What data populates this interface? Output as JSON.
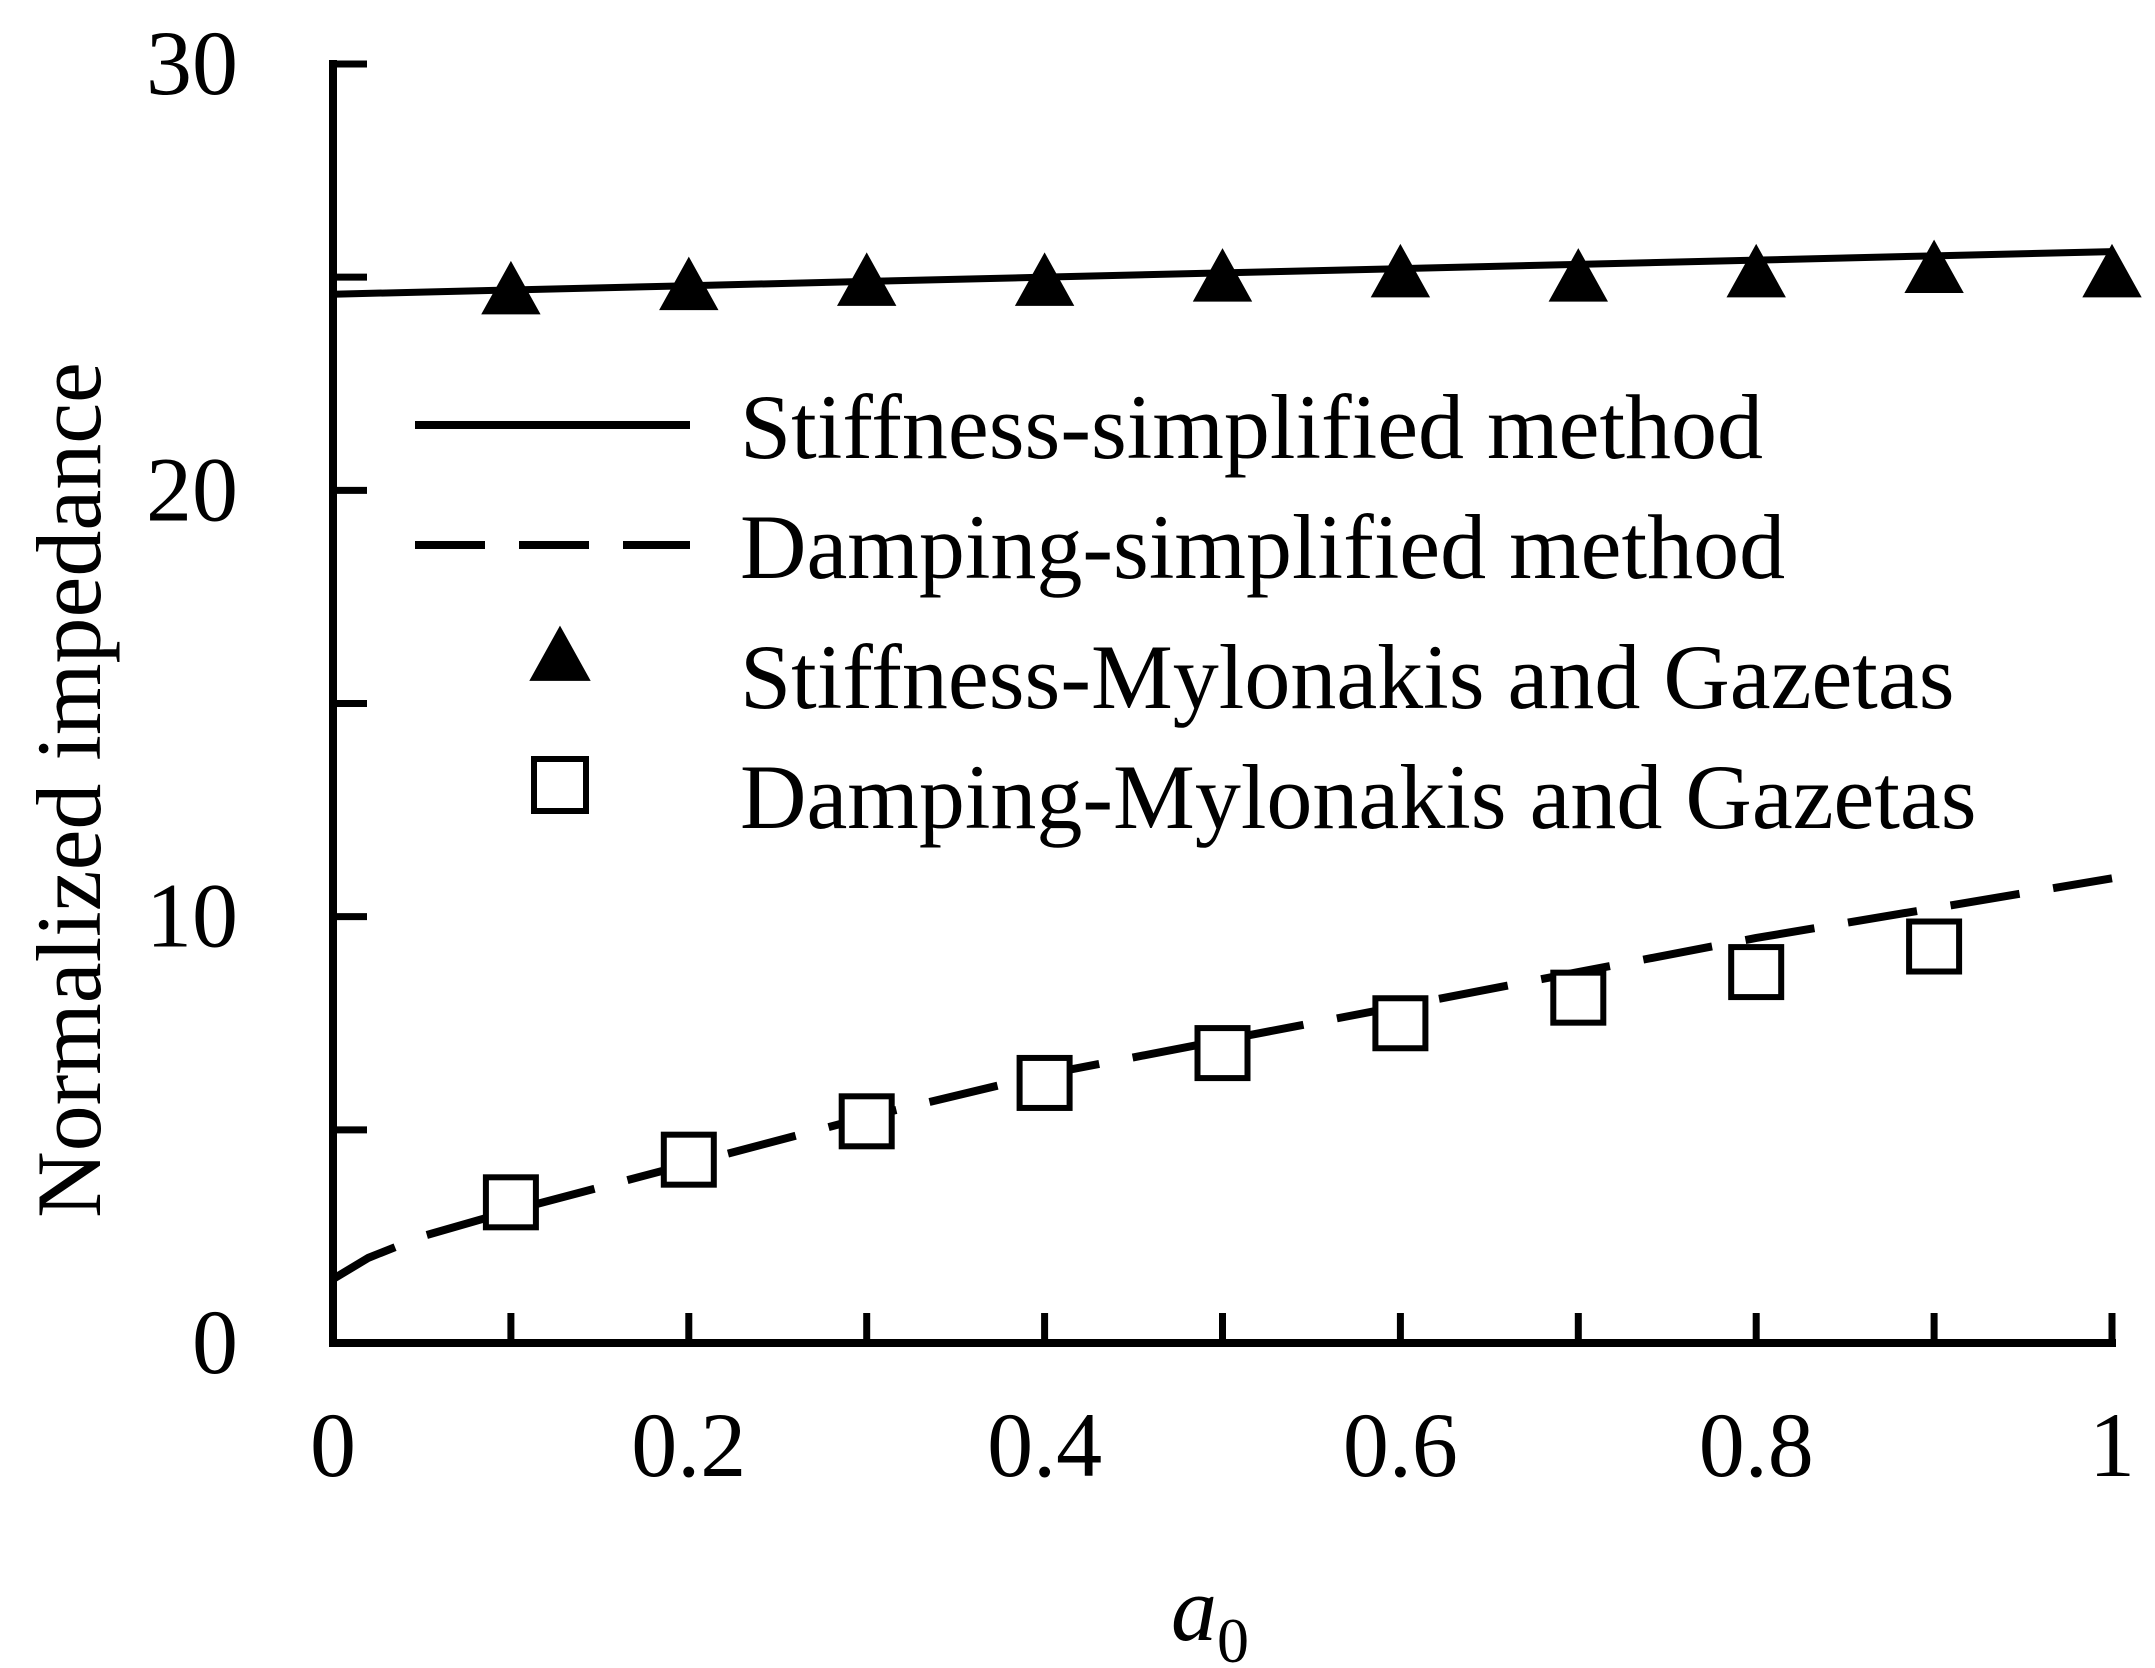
{
  "chart_data": {
    "type": "line",
    "title": "",
    "xlabel": "a",
    "xlabel_subscript": "0",
    "ylabel": "Normalized impedance",
    "xlim": [
      0,
      1
    ],
    "ylim": [
      0,
      30
    ],
    "xticks": [
      0,
      0.1,
      0.2,
      0.3,
      0.4,
      0.5,
      0.6,
      0.7,
      0.8,
      0.9,
      1.0
    ],
    "xtick_labels": [
      "0",
      "0.2",
      "0.4",
      "0.6",
      "0.8",
      "1"
    ],
    "xtick_label_values": [
      0,
      0.2,
      0.4,
      0.6,
      0.8,
      1
    ],
    "yticks": [
      0,
      5,
      10,
      15,
      20,
      25,
      30
    ],
    "ytick_labels": [
      "0",
      "10",
      "20",
      "30"
    ],
    "ytick_label_values": [
      0,
      10,
      20,
      30
    ],
    "legend_position": "middle",
    "series": [
      {
        "name": "Stiffness-simplified method",
        "style": "solid-line",
        "x": [
          0,
          0.1,
          0.2,
          0.3,
          0.4,
          0.5,
          0.6,
          0.7,
          0.8,
          0.9,
          1.0
        ],
        "y": [
          24.6,
          24.7,
          24.8,
          24.9,
          25.0,
          25.1,
          25.2,
          25.3,
          25.4,
          25.5,
          25.6
        ]
      },
      {
        "name": "Damping-simplified method",
        "style": "dashed-line",
        "x": [
          0,
          0.02,
          0.05,
          0.1,
          0.2,
          0.3,
          0.4,
          0.5,
          0.6,
          0.7,
          0.8,
          0.9,
          1.0
        ],
        "y": [
          1.5,
          2.0,
          2.5,
          3.1,
          4.2,
          5.3,
          6.3,
          7.1,
          7.9,
          8.7,
          9.5,
          10.2,
          10.9
        ]
      },
      {
        "name": "Stiffness-Mylonakis and Gazetas",
        "style": "filled-triangle",
        "x": [
          0.1,
          0.2,
          0.3,
          0.4,
          0.5,
          0.6,
          0.7,
          0.8,
          0.9,
          1.0
        ],
        "y": [
          24.6,
          24.7,
          24.8,
          24.8,
          24.9,
          25.0,
          24.9,
          25.0,
          25.1,
          25.0
        ]
      },
      {
        "name": "Damping-Mylonakis and Gazetas",
        "style": "open-square",
        "x": [
          0.1,
          0.2,
          0.3,
          0.4,
          0.5,
          0.6,
          0.7,
          0.8,
          0.9
        ],
        "y": [
          3.3,
          4.3,
          5.2,
          6.1,
          6.8,
          7.5,
          8.1,
          8.7,
          9.3
        ]
      }
    ]
  },
  "colors": {
    "ink": "#000000",
    "background": "#ffffff"
  }
}
